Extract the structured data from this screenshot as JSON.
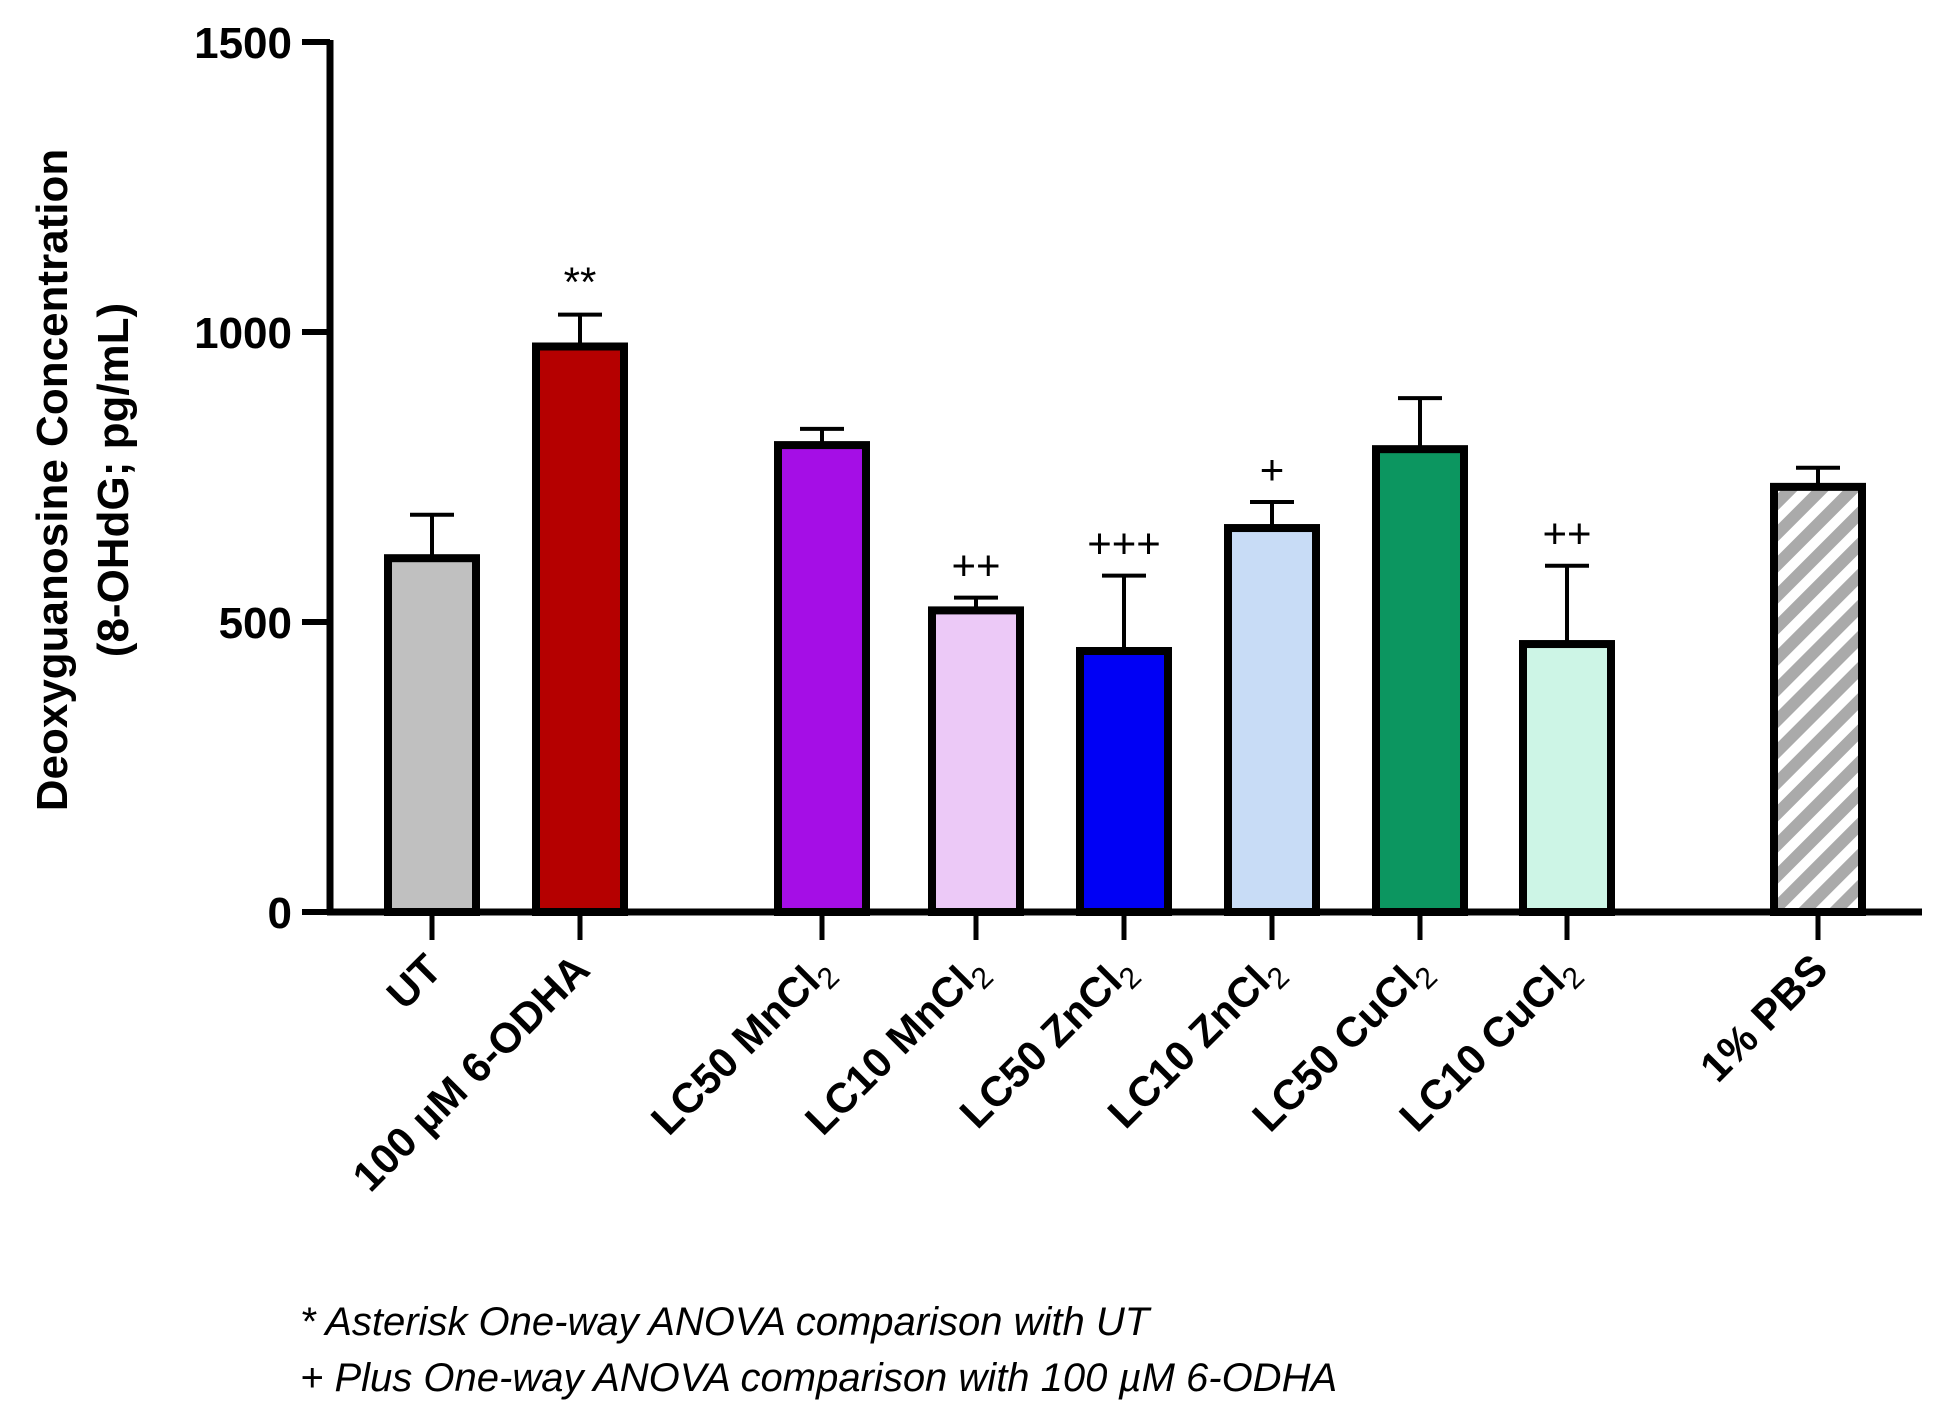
{
  "chart_data": {
    "type": "bar",
    "title": "",
    "xlabel": "",
    "ylabel_line1": "Deoxyguanosine Concentration",
    "ylabel_line2": "(8-OHdG; pg/mL)",
    "ylim": [
      0,
      1500
    ],
    "yticks": [
      "0",
      "500",
      "1000",
      "1500"
    ],
    "grid": false,
    "bars": [
      {
        "label": "UT",
        "sub": "",
        "value": 610,
        "error": 75,
        "color": "#c0c0c0",
        "sig": "",
        "hatch": false
      },
      {
        "label": "100 µM 6-ODHA",
        "sub": "",
        "value": 975,
        "error": 55,
        "color": "#b50000",
        "sig": "**",
        "hatch": false
      },
      {
        "label": "LC50 MnCl",
        "sub": "2",
        "value": 805,
        "error": 28,
        "color": "#a50ee6",
        "sig": "",
        "hatch": false
      },
      {
        "label": "LC10 MnCl",
        "sub": "2",
        "value": 520,
        "error": 22,
        "color": "#ecc9f7",
        "sig": "++",
        "hatch": false
      },
      {
        "label": "LC50 ZnCl",
        "sub": "2",
        "value": 450,
        "error": 130,
        "color": "#0000f5",
        "sig": "+++",
        "hatch": false
      },
      {
        "label": "LC10 ZnCl",
        "sub": "2",
        "value": 662,
        "error": 45,
        "color": "#c8dcf6",
        "sig": "+",
        "hatch": false
      },
      {
        "label": "LC50 CuCl",
        "sub": "2",
        "value": 798,
        "error": 88,
        "color": "#0c9660",
        "sig": "",
        "hatch": false
      },
      {
        "label": "LC10 CuCl",
        "sub": "2",
        "value": 462,
        "error": 135,
        "color": "#cdf5e6",
        "sig": "++",
        "hatch": false
      },
      {
        "label": "1% PBS",
        "sub": "",
        "value": 733,
        "error": 33,
        "color": "#aaaaaa",
        "sig": "",
        "hatch": true
      }
    ]
  },
  "notes": [
    "* Asterisk One-way ANOVA comparison with UT",
    "+ Plus One-way ANOVA comparison with 100 µM 6-ODHA"
  ]
}
